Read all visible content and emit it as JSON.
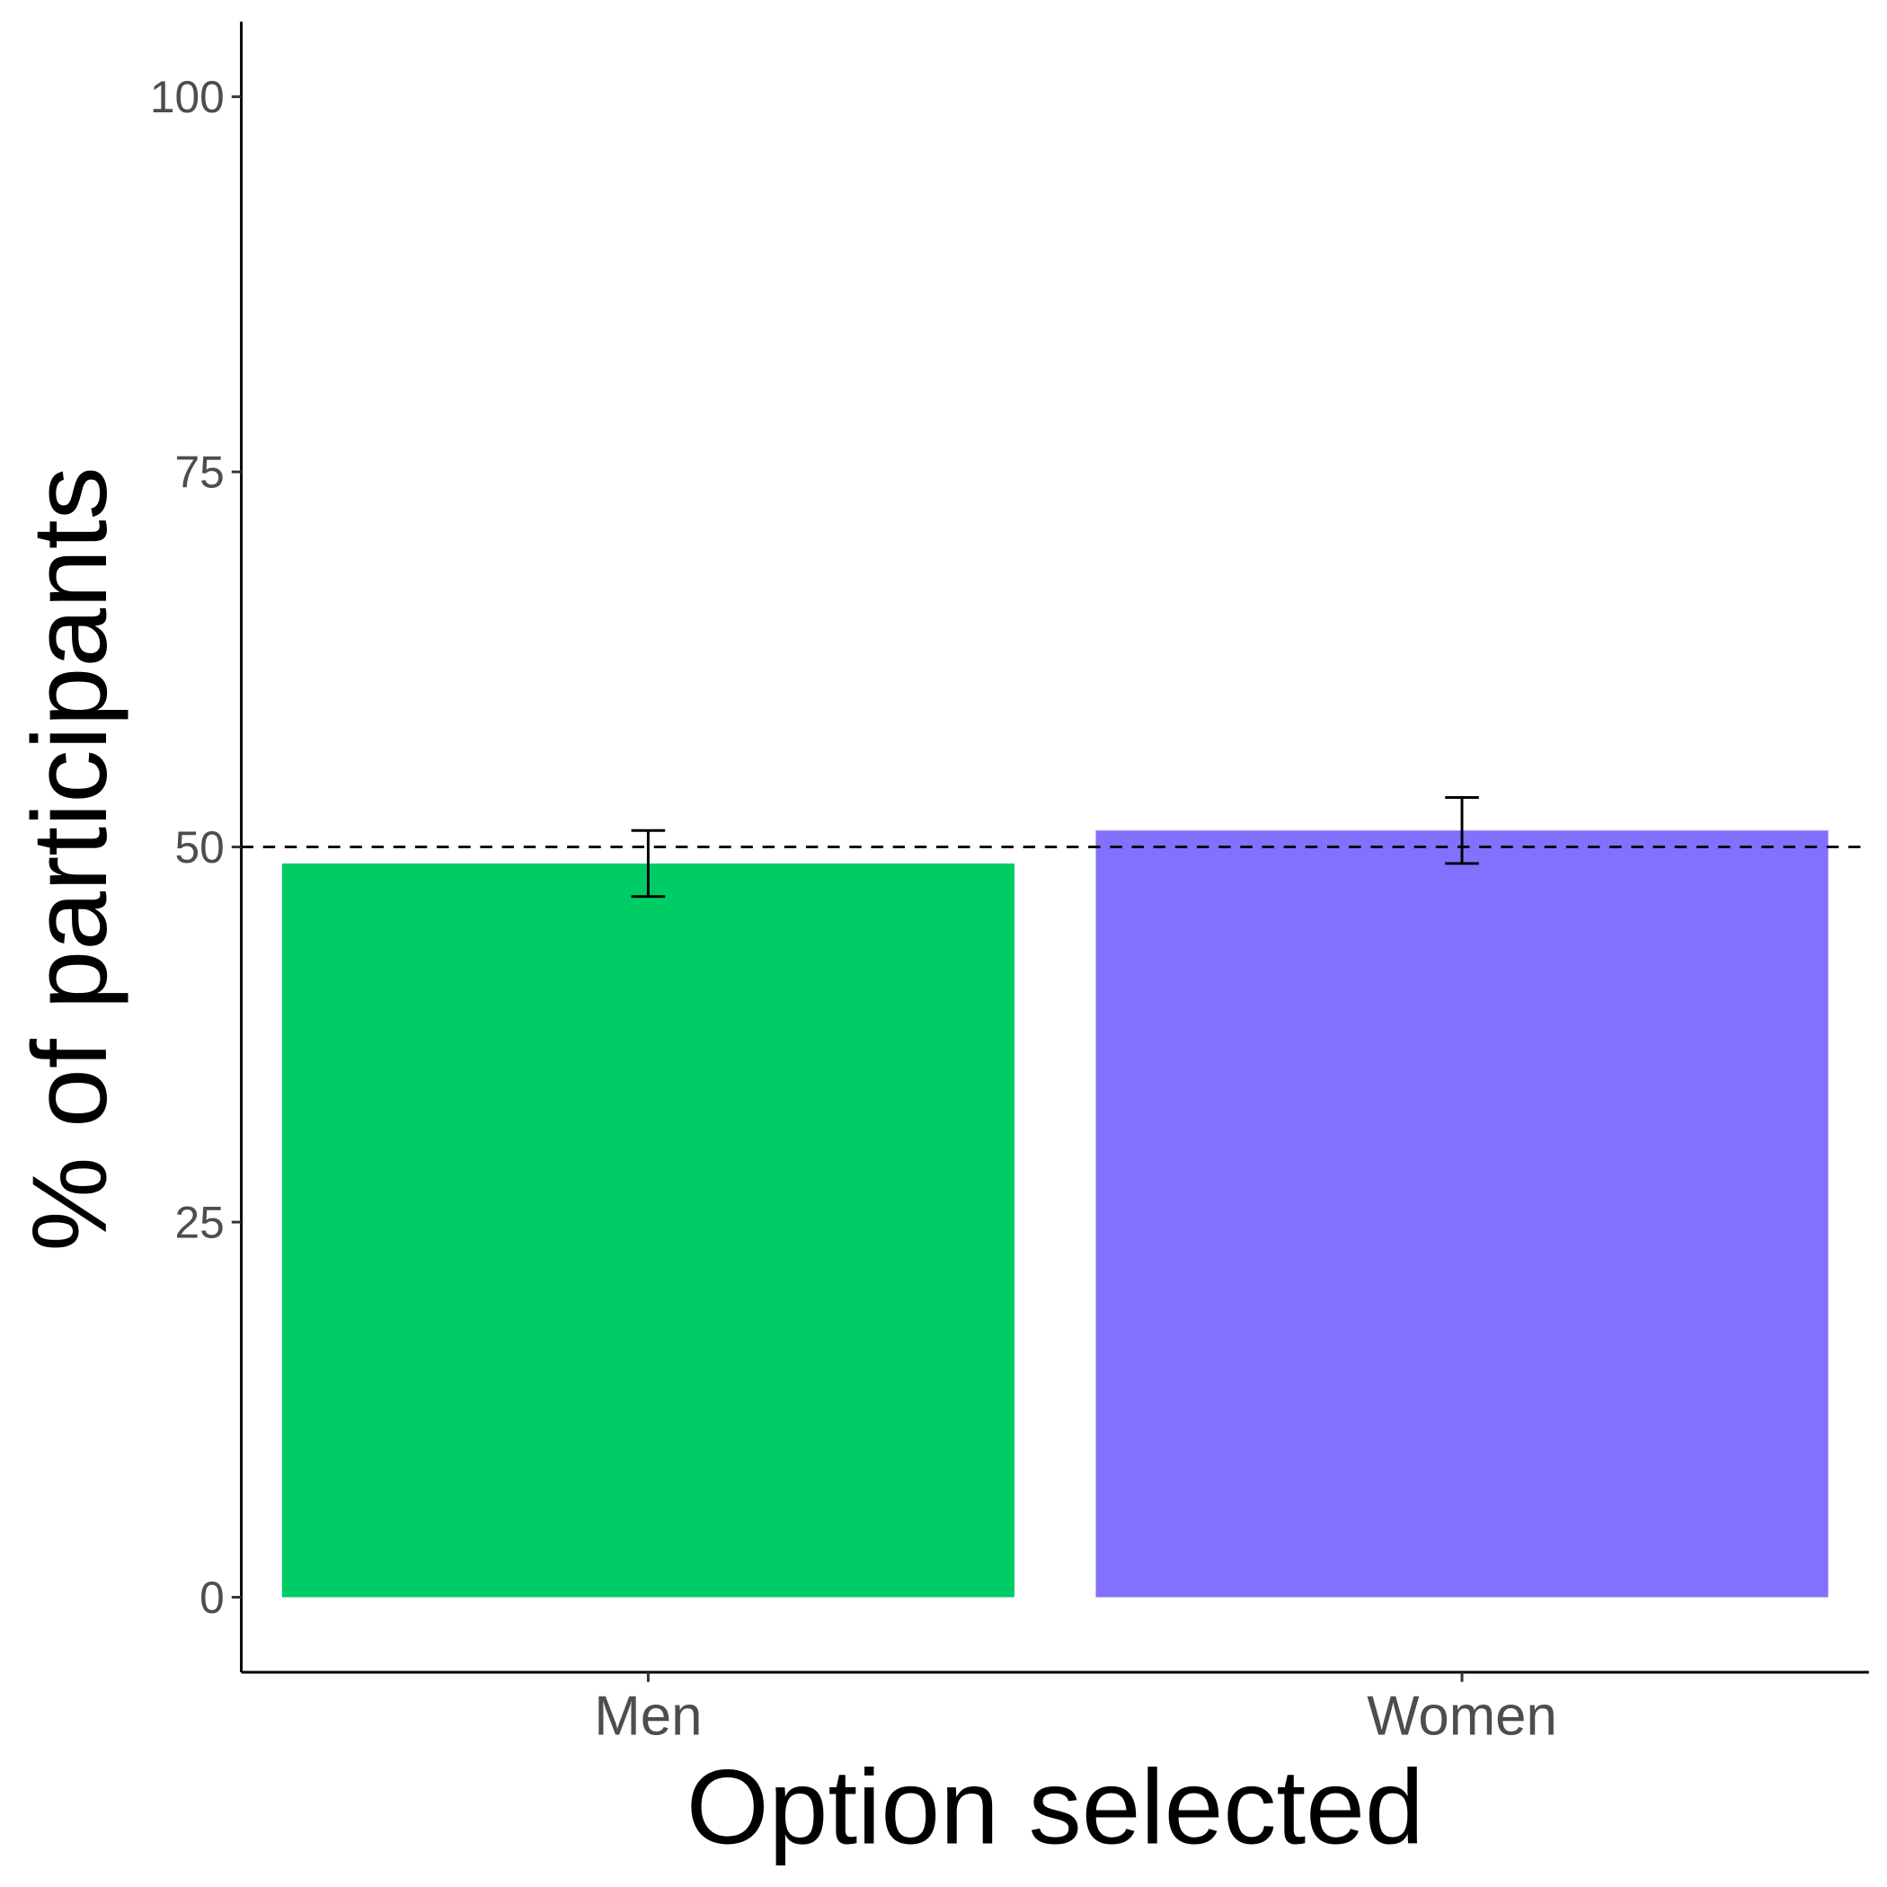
{
  "chart_data": {
    "type": "bar",
    "title": "",
    "xlabel": "Option selected",
    "ylabel": "% of participants",
    "categories": [
      "Men",
      "Women"
    ],
    "values": [
      48.9,
      51.1
    ],
    "error_bars": [
      {
        "category": "Men",
        "low": 46.7,
        "high": 51.1
      },
      {
        "category": "Women",
        "low": 48.9,
        "high": 53.3
      }
    ],
    "colors": [
      "#00CC66",
      "#8270FF"
    ],
    "ylim": [
      -5,
      105
    ],
    "yticks": [
      0,
      25,
      50,
      75,
      100
    ],
    "ytick_labels": [
      "0",
      "25",
      "50",
      "75",
      "100"
    ],
    "reference_line": {
      "y": 50,
      "style": "dashed",
      "color": "#000000"
    },
    "grid": false,
    "legend": "none"
  }
}
